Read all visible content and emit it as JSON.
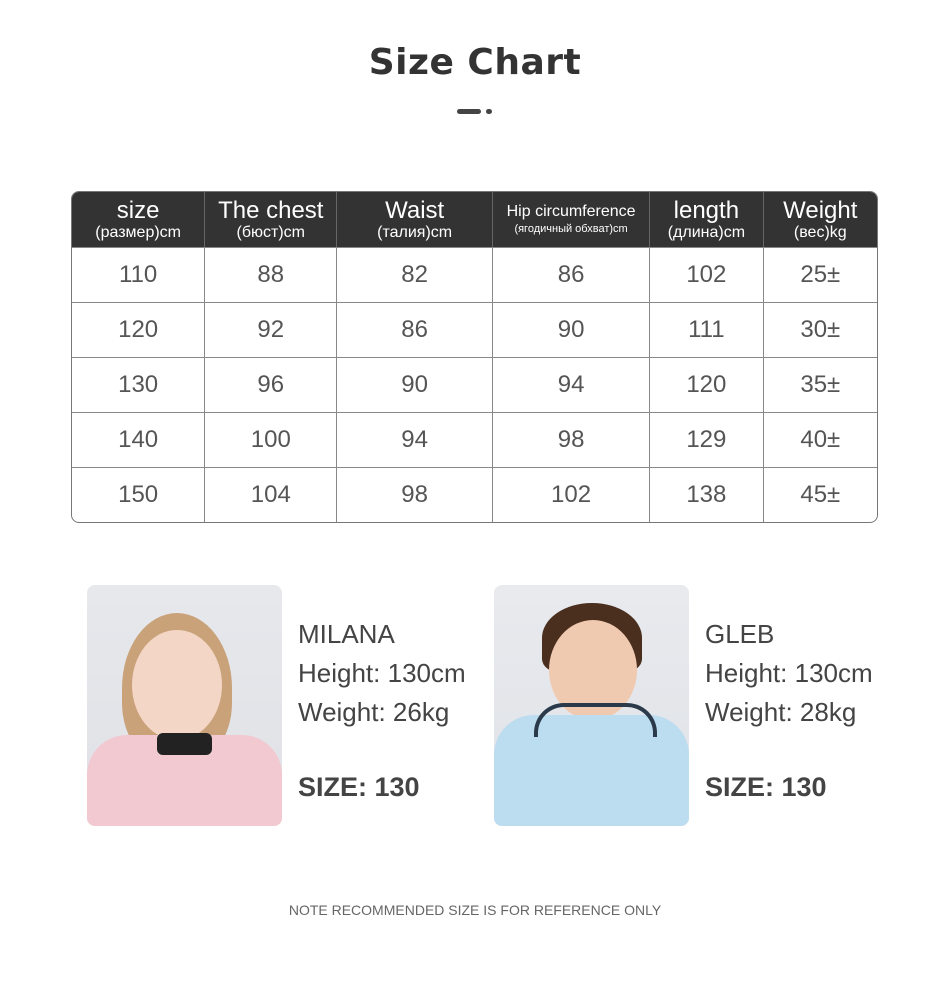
{
  "title": "Size Chart",
  "table": {
    "headers": [
      {
        "main": "size",
        "sub": "(размер)cm"
      },
      {
        "main": "The chest",
        "sub": "(бюст)cm"
      },
      {
        "main": "Waist",
        "sub": "(талия)cm"
      },
      {
        "main": "Hip circumference",
        "sub": "(ягодичный обхват)cm"
      },
      {
        "main": "length",
        "sub": "(длина)cm"
      },
      {
        "main": "Weight",
        "sub": "(вес)kg"
      }
    ],
    "rows": [
      [
        "110",
        "88",
        "82",
        "86",
        "102",
        "25±"
      ],
      [
        "120",
        "92",
        "86",
        "90",
        "111",
        "30±"
      ],
      [
        "130",
        "96",
        "90",
        "94",
        "120",
        "35±"
      ],
      [
        "140",
        "100",
        "94",
        "98",
        "129",
        "40±"
      ],
      [
        "150",
        "104",
        "98",
        "102",
        "138",
        "45±"
      ]
    ]
  },
  "models": [
    {
      "name": "MILANA",
      "height": "Height: 130cm",
      "weight": "Weight: 26kg",
      "size": "SIZE: 130",
      "jacket_color": "#f2c9d0"
    },
    {
      "name": "GLEB",
      "height": "Height: 130cm",
      "weight": "Weight: 28kg",
      "size": "SIZE: 130",
      "jacket_color": "#bcdcef"
    }
  ],
  "note": "NOTE RECOMMENDED SIZE IS FOR REFERENCE ONLY"
}
